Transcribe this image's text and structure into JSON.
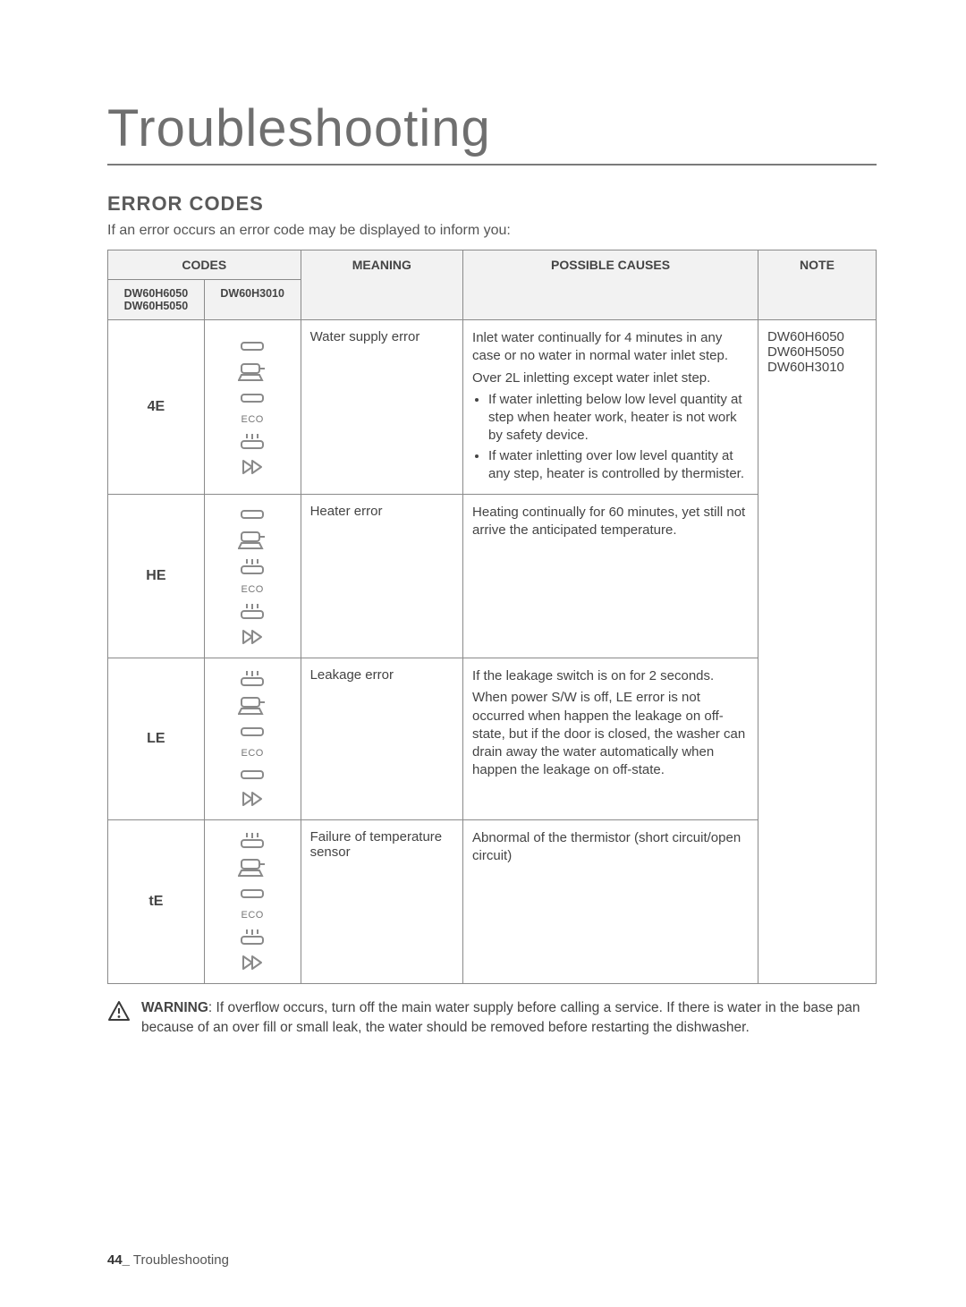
{
  "page": {
    "title": "Troubleshooting",
    "section_heading": "ERROR CODES",
    "intro": "If an error occurs an error code may be displayed to inform you:",
    "footer_page": "44_",
    "footer_label": " Troubleshooting"
  },
  "table": {
    "headers": {
      "codes": "CODES",
      "model_a": "DW60H6050\nDW60H5050",
      "model_b": "DW60H3010",
      "meaning": "MEANING",
      "causes": "POSSIBLE CAUSES",
      "note": "NOTE"
    },
    "note_models": "DW60H6050\nDW60H5050\nDW60H3010",
    "rows": [
      {
        "code": "4E",
        "icons": [
          "rect-plain",
          "pan",
          "rect-plain",
          "eco",
          "steam-rect",
          "fastfwd"
        ],
        "meaning": "Water supply error",
        "causes_paras": [
          "Inlet water continually for 4 minutes in any case or no water in normal water inlet step.",
          "Over 2L inletting except water inlet step."
        ],
        "causes_bullets": [
          "If water inletting below low level quantity at step when heater work, heater is not work by safety device.",
          "If water inletting over low level quantity at any step, heater is controlled by thermister."
        ]
      },
      {
        "code": "HE",
        "icons": [
          "rect-plain",
          "pan",
          "steam-rect",
          "eco",
          "steam-rect",
          "fastfwd"
        ],
        "meaning": "Heater error",
        "causes_paras": [
          "Heating continually for 60 minutes, yet still not arrive the anticipated temperature."
        ],
        "causes_bullets": []
      },
      {
        "code": "LE",
        "icons": [
          "steam-rect",
          "pan",
          "rect-plain",
          "eco",
          "rect-plain",
          "fastfwd"
        ],
        "meaning": "Leakage error",
        "causes_paras": [
          "If the leakage switch is on for 2 seconds.",
          "When power S/W is off, LE error is not occurred when happen the leakage on off-state, but if the door is closed, the washer can drain away the water automatically when happen the leakage on off-state."
        ],
        "causes_bullets": []
      },
      {
        "code": "tE",
        "icons": [
          "steam-rect",
          "pan",
          "rect-plain",
          "eco",
          "steam-rect",
          "fastfwd"
        ],
        "meaning": "Failure of temperature sensor",
        "causes_paras": [
          "Abnormal of the thermistor (short circuit/open circuit)"
        ],
        "causes_bullets": []
      }
    ]
  },
  "warning": {
    "label": "WARNING",
    "text": ": If overflow occurs, turn off the main water supply before calling a service. If there is water in the base pan because of an over fill or small leak, the water should be removed before restarting the dishwasher."
  },
  "style": {
    "border_color": "#8a8a8a",
    "header_bg": "#f2f2f2",
    "icon_stroke": "#8a8a8a"
  }
}
